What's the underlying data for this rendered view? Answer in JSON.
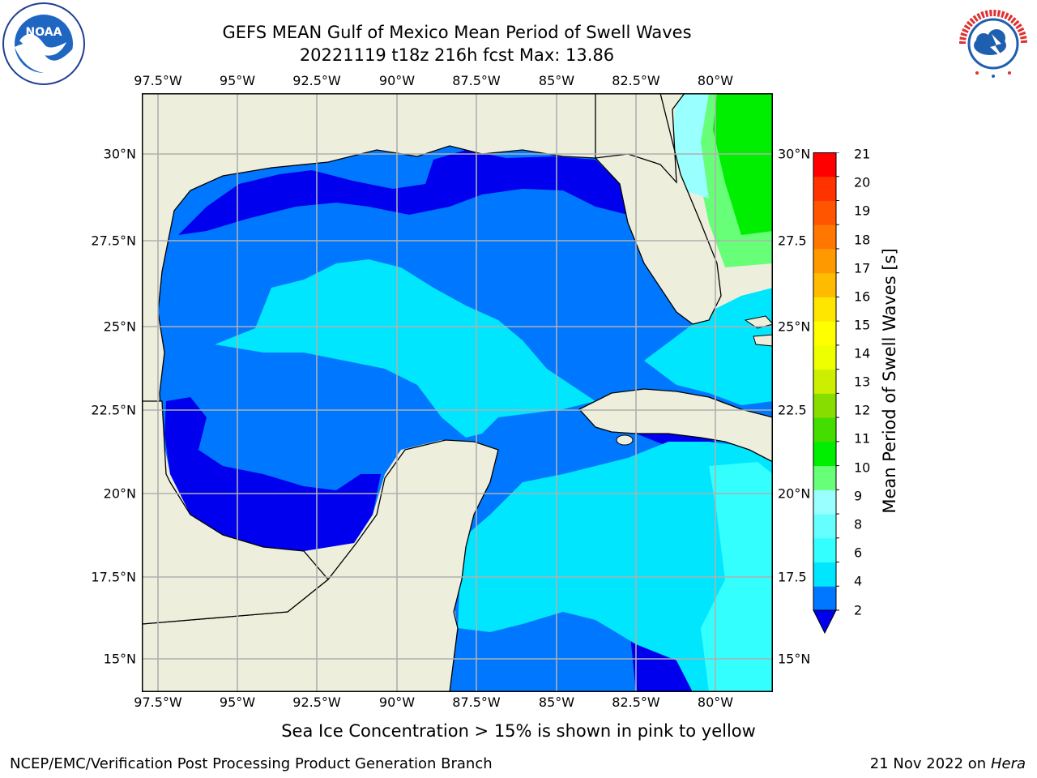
{
  "header": {
    "title_line1": "GEFS MEAN Gulf of Mexico Mean Period of Swell Waves",
    "title_line2": "20221119 t18z 216h fcst   Max: 13.86"
  },
  "map": {
    "region": "Gulf of Mexico",
    "variable": "Mean Period of Swell Waves",
    "lon_ticks": [
      "97.5°W",
      "95°W",
      "92.5°W",
      "90°W",
      "87.5°W",
      "85°W",
      "82.5°W",
      "80°W"
    ],
    "lat_ticks_left": [
      "30°N",
      "27.5°N",
      "25°N",
      "22.5°N",
      "20°N",
      "17.5°N",
      "15°N"
    ],
    "lat_ticks_right": [
      "30°N",
      "27.5",
      "25°N",
      "22.5",
      "20°N",
      "17.5",
      "15°N"
    ],
    "colors": {
      "land": "#eeeedd",
      "grid": "#b0b0b0",
      "coast": "#000000"
    }
  },
  "colorbar": {
    "label": "Mean Period of Swell Waves [s]",
    "ticks": [
      "21",
      "20",
      "19",
      "18",
      "17",
      "16",
      "15",
      "14",
      "13",
      "12",
      "11",
      "10",
      "9",
      "8",
      "6",
      "4",
      "2"
    ],
    "colors_bottom_to_top": [
      "#0077ff",
      "#00e6ff",
      "#33ffff",
      "#66ffff",
      "#99ffff",
      "#66ff77",
      "#00ee00",
      "#44dd00",
      "#88dd00",
      "#ccee00",
      "#eeff00",
      "#ffff00",
      "#ffe600",
      "#ffbb00",
      "#ff9900",
      "#ff7700",
      "#ff5500",
      "#ff3300",
      "#ff0000"
    ],
    "under_color": "#0000ee"
  },
  "notes": {
    "sea_ice": "Sea Ice Concentration > 15% is shown in pink to yellow"
  },
  "footer": {
    "left": "NCEP/EMC/Verification Post Processing Product Generation Branch",
    "right_date": "21 Nov 2022 on",
    "right_machine": "Hera"
  },
  "logos": {
    "left": {
      "icon": "noaa-logo-icon",
      "text": "NOAA"
    },
    "right": {
      "icon": "nws-logo-icon",
      "text": "NATIONAL WEATHER SERVICE"
    }
  }
}
